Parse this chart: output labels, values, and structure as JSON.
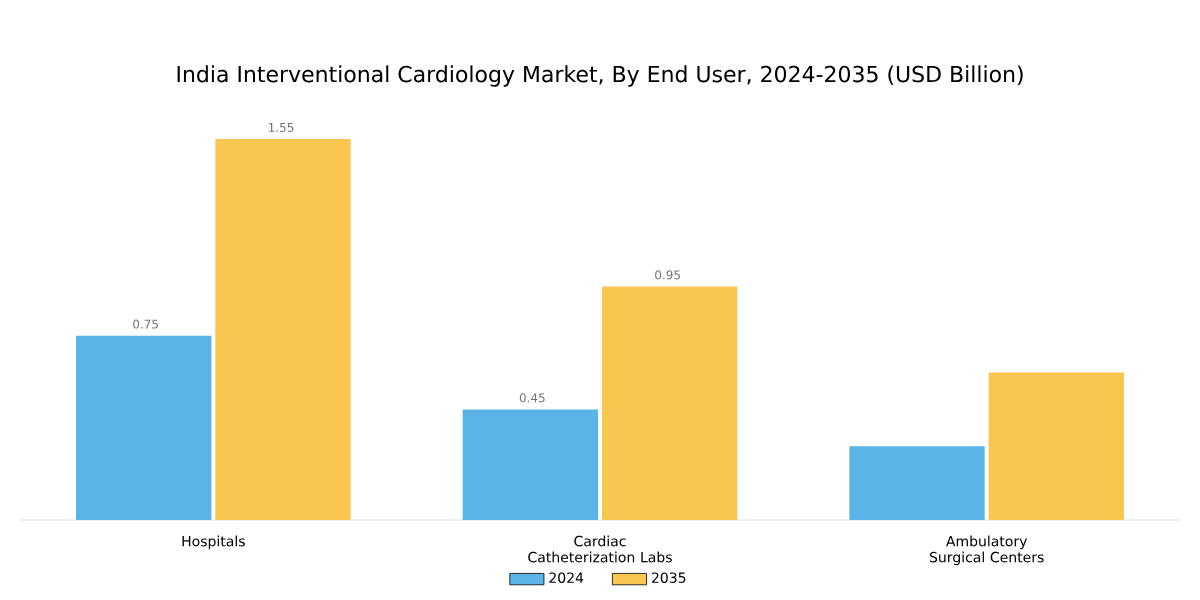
{
  "chart_data": {
    "type": "bar",
    "title": "India Interventional Cardiology Market, By End User, 2024-2035 (USD Billion)",
    "categories": [
      "Hospitals",
      "Cardiac Catheterization Labs",
      "Ambulatory Surgical Centers"
    ],
    "series": [
      {
        "name": "2024",
        "color": "#5ab4e8",
        "values": [
          0.75,
          0.45,
          0.3
        ],
        "value_labels": [
          "0.75",
          "0.45",
          null
        ]
      },
      {
        "name": "2035",
        "color": "#f9c74f",
        "values": [
          1.55,
          0.95,
          0.6
        ],
        "value_labels": [
          "1.55",
          "0.95",
          null
        ]
      }
    ],
    "legend": "bottom"
  }
}
